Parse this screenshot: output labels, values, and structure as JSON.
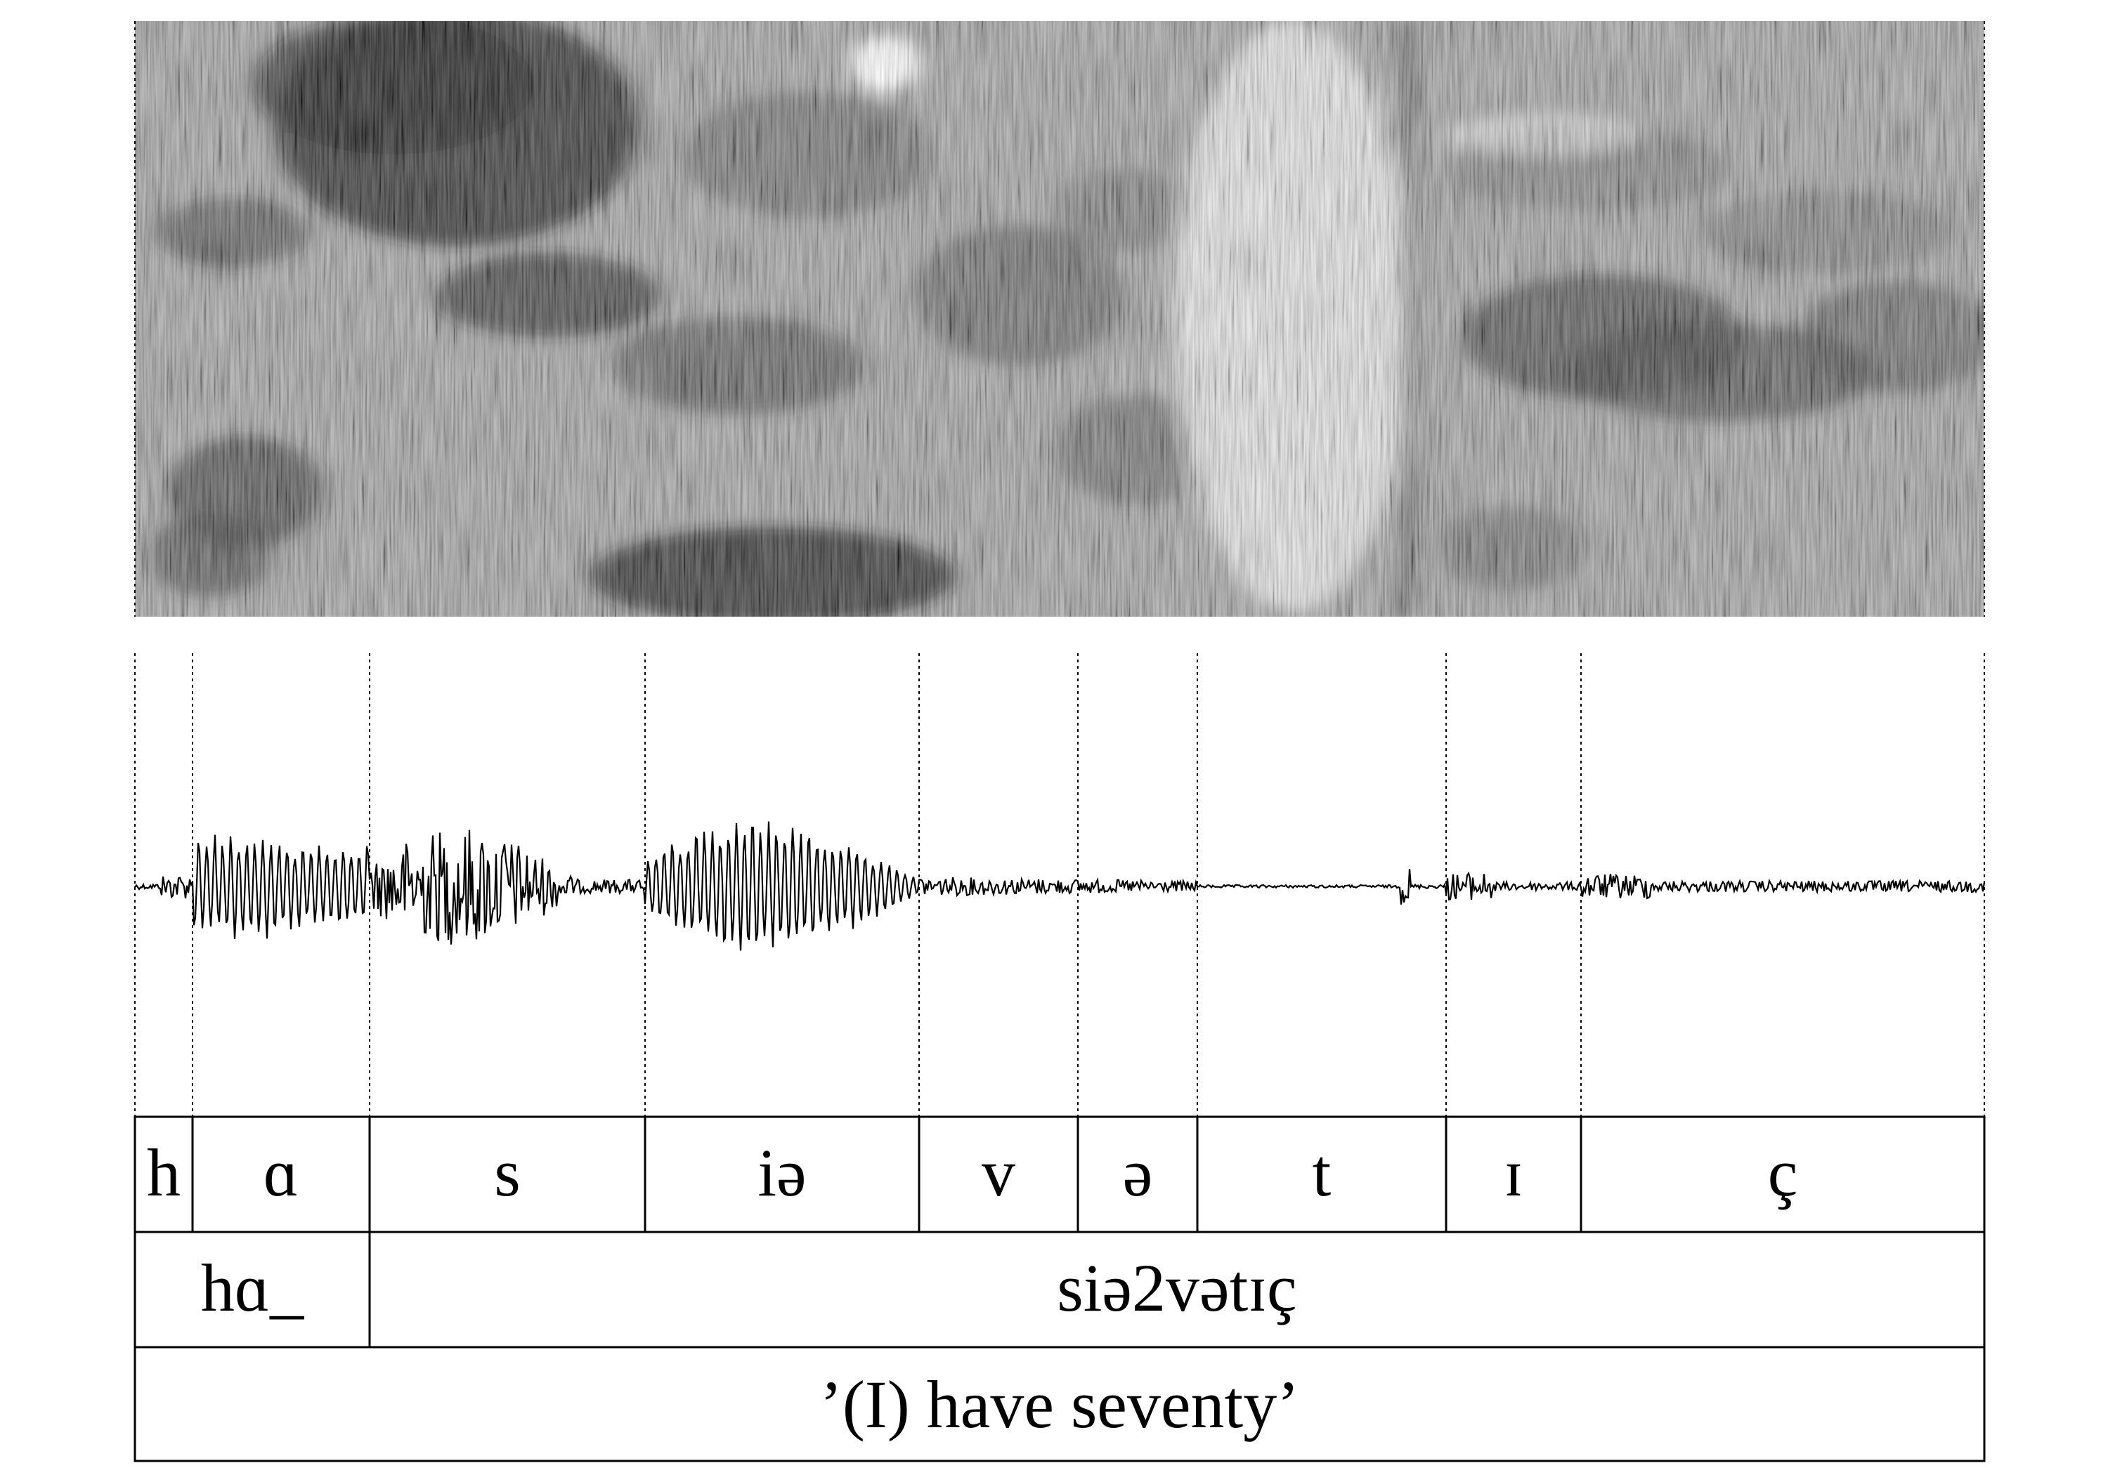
{
  "figure": {
    "phones": [
      "h",
      "ɑ",
      "s",
      "iə",
      "v",
      "ə",
      "t",
      "ɪ",
      "ç"
    ],
    "words": [
      "hɑ_",
      "siə2vətɪç"
    ],
    "gloss": "’(I) have seventy’"
  },
  "colors": {
    "background": "#ffffff",
    "ink": "#000000",
    "spectrogram_dark": "#1a1a1a",
    "spectrogram_light": "#f2f2f2"
  }
}
